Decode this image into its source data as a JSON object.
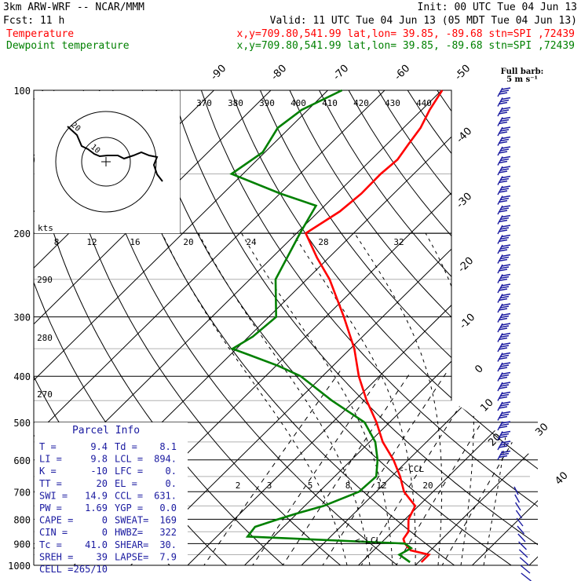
{
  "header": {
    "line1_left": "3km ARW-WRF -- NCAR/MMM",
    "line1_right": "Init: 00 UTC Tue 04 Jun 13",
    "line2_left": "Fcst:    11 h",
    "line2_right": "Valid: 11 UTC Tue 04 Jun 13 (05 MDT Tue 04 Jun 13)",
    "line3_label": "Temperature",
    "line3_info": "x,y=709.80,541.99   lat,lon= 39.85, -89.68  stn=SPI ,72439",
    "line4_label": "Dewpoint temperature",
    "line4_info": "x,y=709.80,541.99   lat,lon= 39.85, -89.68  stn=SPI ,72439",
    "temp_color": "#ff0000",
    "dew_color": "#008000"
  },
  "barb_legend": [
    "Full barb:",
    "5 m s⁻¹"
  ],
  "hodograph": {
    "label_kts": "kts",
    "ring_labels": [
      "20",
      "10"
    ]
  },
  "parcel_info": {
    "title": "Parcel Info",
    "rows": [
      [
        "T  =",
        "9.4",
        "Td =",
        "8.1"
      ],
      [
        "LI =",
        "9.8",
        "LCL =",
        "894."
      ],
      [
        "K  =",
        "-10",
        "LFC =",
        "0."
      ],
      [
        "TT =",
        "20",
        "EL  =",
        "0."
      ],
      [
        "SWI =",
        "14.9",
        "CCL =",
        "631."
      ],
      [
        "PW =",
        "1.69",
        "YGP =",
        "0.0"
      ],
      [
        "CAPE =",
        "0",
        "SWEAT=",
        "169"
      ],
      [
        "CIN =",
        "0",
        "HWBZ=",
        "322"
      ],
      [
        "Tc =",
        "41.0",
        "SHEAR=",
        "30."
      ],
      [
        "SREH =",
        "39",
        "LAPSE=",
        "7.9"
      ],
      [
        "CELL =",
        "265/10",
        "",
        ""
      ]
    ]
  },
  "annotations": {
    "ccl": "<-CCL",
    "lcl": "<-LCL"
  },
  "chart_data": {
    "type": "line",
    "title": "",
    "xlabel": "",
    "ylabel": "",
    "pressure_levels": [
      100,
      200,
      300,
      400,
      500,
      600,
      700,
      800,
      900,
      1000
    ],
    "pressure_labels": [
      "100",
      "200",
      "300",
      "400",
      "500",
      "600",
      "700",
      "800",
      "900",
      "1000"
    ],
    "isotherm_labels": [
      "-90",
      "-80",
      "-70",
      "-60",
      "-50",
      "-40",
      "-30",
      "-20",
      "-10",
      "0",
      "10",
      "20",
      "30",
      "40"
    ],
    "isentrope_top_labels": [
      "370",
      "380",
      "390",
      "400",
      "410",
      "420",
      "430",
      "440"
    ],
    "isentrope_left_labels": [
      "290",
      "280",
      "270"
    ],
    "mixing_ratio_top_labels": [
      "8",
      "12",
      "16",
      "20",
      "24",
      "28",
      "32"
    ],
    "mixing_ratio_low_labels": [
      "2",
      "3",
      "5",
      "8",
      "12",
      "20"
    ],
    "series": [
      {
        "name": "Temperature",
        "color": "#ff0000",
        "p": [
          985,
          950,
          930,
          900,
          880,
          850,
          800,
          750,
          700,
          650,
          600,
          550,
          500,
          450,
          400,
          350,
          300,
          250,
          225,
          200,
          180,
          165,
          150,
          140,
          130,
          120,
          110,
          100
        ],
        "t": [
          20.5,
          20.5,
          16.5,
          14.3,
          13.2,
          12.8,
          10.6,
          9.4,
          4.9,
          1.5,
          -2.6,
          -7.7,
          -12.3,
          -17.9,
          -23.6,
          -29.3,
          -36.8,
          -46.0,
          -52.1,
          -58.4,
          -56.3,
          -55.7,
          -55.8,
          -55.4,
          -56.2,
          -57.0,
          -58.6,
          -59.9
        ]
      },
      {
        "name": "Dewpoint temperature",
        "color": "#008000",
        "p": [
          985,
          950,
          920,
          900,
          870,
          830,
          800,
          780,
          750,
          700,
          650,
          600,
          550,
          500,
          450,
          400,
          380,
          360,
          350,
          330,
          300,
          250,
          200,
          175,
          165,
          150,
          135,
          120,
          110,
          100
        ],
        "t": [
          18.5,
          15.3,
          16.2,
          14.3,
          -14.6,
          -15.0,
          -12.3,
          -10.3,
          -6.7,
          -3.0,
          -2.7,
          -5.4,
          -9.0,
          -14.4,
          -24.0,
          -33.8,
          -39.7,
          -46.9,
          -50.7,
          -49.3,
          -48.7,
          -55.5,
          -59.4,
          -61.5,
          -69.9,
          -82.0,
          -80.4,
          -82.1,
          -81.1,
          -77.5
        ]
      }
    ]
  }
}
